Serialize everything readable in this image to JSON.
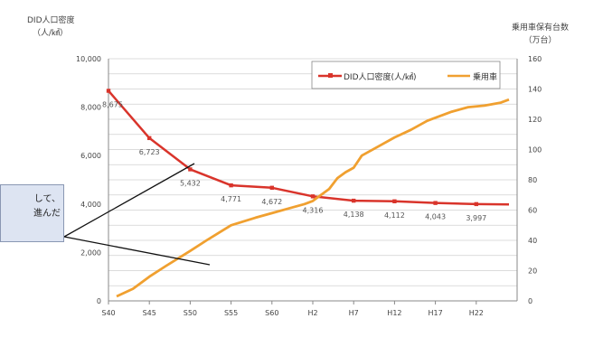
{
  "chart_data": {
    "type": "line",
    "left_axis_title": [
      "DID人口密度",
      "（人/㎢）"
    ],
    "right_axis_title": [
      "乗用車保有台数",
      "（万台）"
    ],
    "categories": [
      "S40",
      "S45",
      "S50",
      "S55",
      "S60",
      "H2",
      "H7",
      "H12",
      "H17",
      "H22"
    ],
    "y_left": {
      "min": 0,
      "max": 10000,
      "ticks": [
        "0",
        "2,000",
        "4,000",
        "6,000",
        "8,000",
        "10,000"
      ]
    },
    "y_right": {
      "min": 0,
      "max": 160,
      "ticks": [
        "0",
        "20",
        "40",
        "60",
        "80",
        "100",
        "120",
        "140",
        "160"
      ]
    },
    "grid": true,
    "legend_position": "top-right",
    "series": [
      {
        "name": "DID人口密度(人/㎢)",
        "axis": "left",
        "color": "#d9342b",
        "x": [
          0,
          5,
          10,
          15,
          20,
          25,
          30,
          35,
          40,
          45,
          49
        ],
        "values": [
          8675,
          6723,
          5432,
          4771,
          4672,
          4316,
          4138,
          4112,
          4043,
          3997,
          3980
        ],
        "labels": [
          {
            "index": 0,
            "text": "8,675"
          },
          {
            "index": 1,
            "text": "6,723"
          },
          {
            "index": 2,
            "text": "5,432"
          },
          {
            "index": 3,
            "text": "4,771"
          },
          {
            "index": 4,
            "text": "4,672"
          },
          {
            "index": 5,
            "text": "4,316"
          },
          {
            "index": 6,
            "text": "4,138"
          },
          {
            "index": 7,
            "text": "4,112"
          },
          {
            "index": 8,
            "text": "4,043"
          },
          {
            "index": 9,
            "text": "3,997"
          }
        ]
      },
      {
        "name": "乗用車",
        "axis": "right",
        "color": "#f0a030",
        "x": [
          1,
          3,
          5,
          7,
          10,
          12,
          15,
          18,
          20,
          22,
          24,
          25,
          27,
          28,
          29,
          30,
          31,
          33,
          35,
          37,
          39,
          40,
          42,
          44,
          46,
          48,
          49
        ],
        "values": [
          3,
          8,
          16,
          23,
          33,
          40,
          50,
          55,
          58,
          61,
          64,
          66,
          74,
          81,
          85,
          88,
          96,
          102,
          108,
          113,
          119,
          121,
          125,
          128,
          129,
          131,
          133
        ]
      }
    ],
    "callout": [
      "して、",
      "進んだ"
    ]
  }
}
